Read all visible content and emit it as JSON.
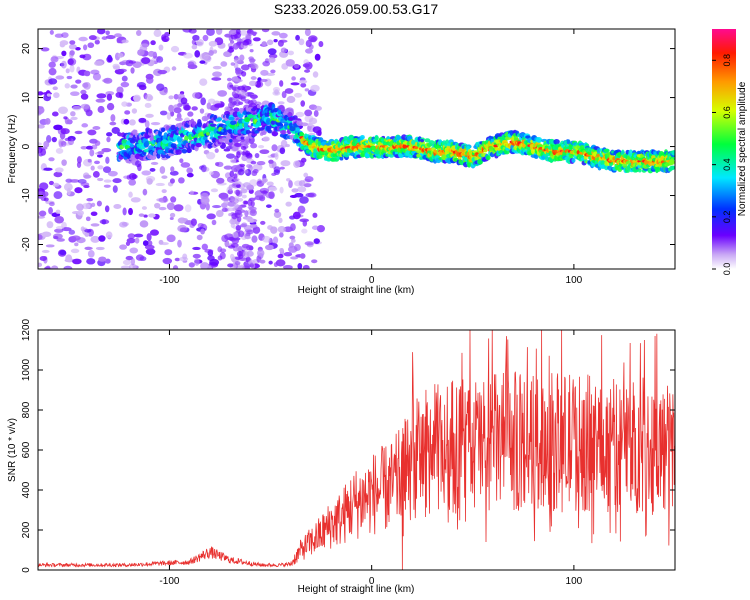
{
  "title": "S233.2026.059.00.53.G17",
  "colorbar": {
    "label": "Normalized spectral amplitude",
    "ticks": [
      "0.0",
      "0.2",
      "0.4",
      "0.6",
      "0.8"
    ],
    "tick_values": [
      0.0,
      0.2,
      0.4,
      0.6,
      0.8
    ],
    "range": [
      0,
      0.92
    ]
  },
  "chart_data": [
    {
      "type": "heatmap",
      "xlabel": "Height of straight line (km)",
      "ylabel": "Frequency (Hz)",
      "xlim": [
        -165,
        150
      ],
      "ylim": [
        -25,
        24
      ],
      "xticks": [
        -100,
        0,
        100
      ],
      "yticks": [
        -20,
        -10,
        0,
        10,
        20
      ],
      "xtick_labels": [
        "-100",
        "0",
        "100"
      ],
      "ytick_labels": [
        "-20",
        "-10",
        "0",
        "10",
        "20"
      ],
      "ridge": {
        "x": [
          -120,
          -100,
          -80,
          -60,
          -50,
          -40,
          -35,
          -30,
          -20,
          -10,
          0,
          10,
          20,
          30,
          40,
          50,
          60,
          70,
          80,
          90,
          100,
          110,
          120,
          130,
          140,
          150
        ],
        "y": [
          0,
          1,
          3,
          5,
          6,
          4,
          2,
          0,
          -1,
          0,
          0,
          0,
          0,
          -1,
          -1,
          -2,
          0,
          1,
          0,
          -1,
          -1,
          -2,
          -3,
          -3,
          -3,
          -3
        ]
      }
    },
    {
      "type": "line",
      "xlabel": "Height of straight line (km)",
      "ylabel": "SNR (10 * v/v)",
      "xlim": [
        -165,
        150
      ],
      "ylim": [
        0,
        1200
      ],
      "xticks": [
        -100,
        0,
        100
      ],
      "yticks": [
        0,
        200,
        400,
        600,
        800,
        1000,
        1200
      ],
      "xtick_labels": [
        "-100",
        "0",
        "100"
      ],
      "ytick_labels": [
        "0",
        "200",
        "400",
        "600",
        "800",
        "1000",
        "1200"
      ],
      "series": [
        {
          "color": "#e8302e",
          "envelope_x": [
            -165,
            -120,
            -90,
            -80,
            -70,
            -55,
            -45,
            -40,
            -35,
            -30,
            -25,
            -20,
            -15,
            -10,
            -5,
            0,
            5,
            10,
            15,
            20,
            25,
            30,
            40,
            50,
            60,
            70,
            80,
            90,
            100,
            110,
            120,
            130,
            140,
            150
          ],
          "envelope_y": [
            25,
            25,
            40,
            90,
            50,
            25,
            25,
            30,
            100,
            140,
            180,
            230,
            260,
            320,
            350,
            380,
            400,
            420,
            470,
            540,
            580,
            600,
            620,
            630,
            640,
            640,
            640,
            640,
            640,
            630,
            620,
            620,
            610,
            600
          ]
        }
      ]
    }
  ]
}
